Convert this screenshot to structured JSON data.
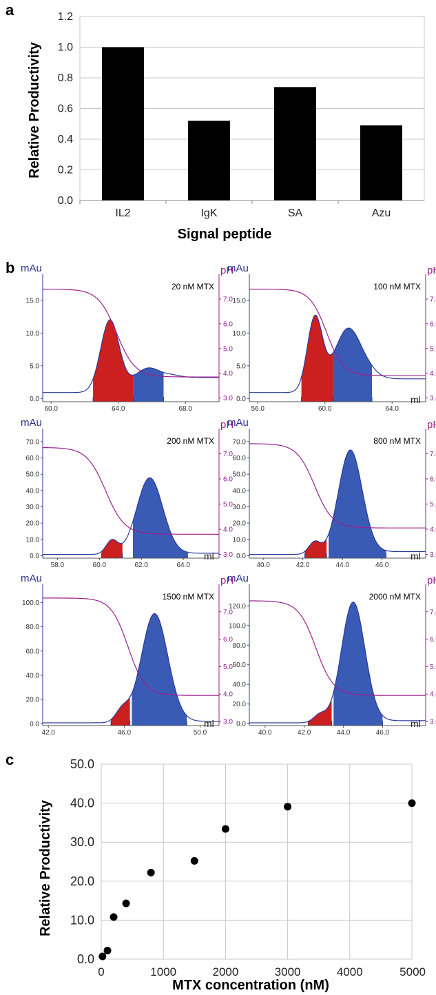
{
  "panels": {
    "a": "a",
    "b": "b",
    "c": "c"
  },
  "chart_data": [
    {
      "type": "bar",
      "panel": "a",
      "categories": [
        "IL2",
        "IgK",
        "SA",
        "Azu"
      ],
      "values": [
        1.0,
        0.52,
        0.74,
        0.49
      ],
      "ylabel": "Relative Productivity",
      "xlabel": "Signal peptide",
      "ylim": [
        0,
        1.2
      ],
      "yticks": [
        "0.0",
        "0.2",
        "0.4",
        "0.6",
        "0.8",
        "1.0",
        "1.2"
      ],
      "grid": "horizontal",
      "bar_color": "#000000"
    },
    {
      "type": "line",
      "panel": "b",
      "left_axis_label": "mAu",
      "right_axis_label": "pH",
      "x_unit": "ml",
      "colors": {
        "uv": "#2b3a9a",
        "ph": "#9a1f8e",
        "fraction1": "#cc1f1f",
        "fraction2": "#3a5bb5"
      },
      "subplots": [
        {
          "condition": "20 nM MTX",
          "xlim": [
            59.5,
            70.0
          ],
          "ylim": [
            -0.5,
            19.0
          ],
          "xticks": [
            "60.0",
            "64.0",
            "68.0"
          ],
          "xtick_values": [
            60,
            64,
            68
          ],
          "yticks": [
            "0.0",
            "5.0",
            "10.0",
            "15.0"
          ],
          "ytick_values": [
            0,
            5,
            10,
            15
          ],
          "show_ml": false,
          "baseline": 0.9,
          "tail": 3.2,
          "peaks": [
            [
              63.5,
              11.0,
              0.55
            ],
            [
              65.8,
              3.7,
              0.9
            ]
          ],
          "ph_high": 7.4,
          "ph_low": 3.85,
          "ph_mid": 63.9,
          "ph_width": 0.55,
          "fraction1": [
            62.5,
            64.9
          ],
          "fraction2": [
            64.9,
            66.7
          ]
        },
        {
          "condition": "100 nM MTX",
          "xlim": [
            55.5,
            66.0
          ],
          "ylim": [
            -0.5,
            19.0
          ],
          "xticks": [
            "56.0",
            "60.0",
            "64.0"
          ],
          "xtick_values": [
            56,
            60,
            64
          ],
          "yticks": [
            "0.0",
            "5.0",
            "10.0",
            "15.0"
          ],
          "ytick_values": [
            0,
            5,
            10,
            15
          ],
          "show_ml": true,
          "baseline": 0.9,
          "tail": 3.0,
          "peaks": [
            [
              59.4,
              11.2,
              0.45
            ],
            [
              61.4,
              9.8,
              0.85
            ]
          ],
          "ph_high": 7.4,
          "ph_low": 3.9,
          "ph_mid": 60.1,
          "ph_width": 0.5,
          "fraction1": [
            58.6,
            60.5
          ],
          "fraction2": [
            60.5,
            62.8
          ]
        },
        {
          "condition": "200 nM MTX",
          "xlim": [
            57.3,
            65.7
          ],
          "ylim": [
            -1.5,
            78.0
          ],
          "xticks": [
            "58.0",
            "60.0",
            "62.0",
            "64.0"
          ],
          "xtick_values": [
            58,
            60,
            62,
            64
          ],
          "yticks": [
            "0.0",
            "10.0",
            "20.0",
            "30.0",
            "40.0",
            "50.0",
            "60.0",
            "70.0"
          ],
          "ytick_values": [
            0,
            10,
            20,
            30,
            40,
            50,
            60,
            70
          ],
          "show_ml": true,
          "baseline": 0.8,
          "tail": 1.5,
          "peaks": [
            [
              60.6,
              8.5,
              0.28
            ],
            [
              62.4,
              47.0,
              0.62
            ]
          ],
          "ph_high": 7.25,
          "ph_low": 3.8,
          "ph_mid": 60.3,
          "ph_width": 0.45,
          "fraction1": [
            60.1,
            61.1
          ],
          "fraction2": [
            61.6,
            64.2
          ]
        },
        {
          "condition": "800 nM MTX",
          "xlim": [
            39.3,
            48.2
          ],
          "ylim": [
            -1.5,
            78.0
          ],
          "xticks": [
            "40.0",
            "42.0",
            "44.0",
            "46.0"
          ],
          "xtick_values": [
            40,
            42,
            44,
            46
          ],
          "yticks": [
            "0.0",
            "10.0",
            "20.0",
            "30.0",
            "40.0",
            "50.0",
            "60.0",
            "70.0"
          ],
          "ytick_values": [
            0,
            10,
            20,
            30,
            40,
            50,
            60,
            70
          ],
          "show_ml": true,
          "baseline": 0.8,
          "tail": 2.5,
          "peaks": [
            [
              42.6,
              7.5,
              0.3
            ],
            [
              44.4,
              64.0,
              0.6
            ]
          ],
          "ph_high": 7.4,
          "ph_low": 4.05,
          "ph_mid": 42.6,
          "ph_width": 0.45,
          "fraction1": [
            42.1,
            43.2
          ],
          "fraction2": [
            43.3,
            46.2
          ]
        },
        {
          "condition": "1500 nM MTX",
          "xlim": [
            41.7,
            51.0
          ],
          "ylim": [
            -1.5,
            115.0
          ],
          "xticks": [
            "42.0",
            "46.0",
            "50.0"
          ],
          "xtick_values": [
            42,
            46,
            50
          ],
          "yticks": [
            "0.0",
            "20.0",
            "40.0",
            "60.0",
            "80.0",
            "100.0"
          ],
          "ytick_values": [
            0,
            20,
            40,
            60,
            80,
            100
          ],
          "show_ml": true,
          "baseline": 0.8,
          "tail": 2.0,
          "peaks": [
            [
              45.9,
              10.0,
              0.35
            ],
            [
              47.6,
              90.0,
              0.7
            ]
          ],
          "ph_high": 7.5,
          "ph_low": 3.95,
          "ph_mid": 46.2,
          "ph_width": 0.45,
          "fraction1": [
            45.3,
            46.3
          ],
          "fraction2": [
            46.4,
            49.3
          ]
        },
        {
          "condition": "2000 nM MTX",
          "xlim": [
            39.2,
            48.2
          ],
          "ylim": [
            -2.0,
            142.0
          ],
          "xticks": [
            "40.0",
            "42.0",
            "44.0",
            "46.0"
          ],
          "xtick_values": [
            40,
            42,
            44,
            46
          ],
          "yticks": [
            "0.0",
            "20.0",
            "40.0",
            "60.0",
            "80.0",
            "100.0",
            "120.0"
          ],
          "ytick_values": [
            0,
            20,
            40,
            60,
            80,
            100,
            120
          ],
          "show_ml": true,
          "baseline": 0.8,
          "tail": 3.0,
          "peaks": [
            [
              42.8,
              8.0,
              0.32
            ],
            [
              44.5,
              123.0,
              0.6
            ]
          ],
          "ph_high": 7.4,
          "ph_low": 3.95,
          "ph_mid": 42.6,
          "ph_width": 0.45,
          "fraction1": [
            42.2,
            43.4
          ],
          "fraction2": [
            43.5,
            46.0
          ]
        }
      ]
    },
    {
      "type": "scatter",
      "panel": "c",
      "x": [
        20,
        100,
        200,
        400,
        800,
        1500,
        2000,
        3000,
        5000
      ],
      "y": [
        0.7,
        2.2,
        10.8,
        14.3,
        22.2,
        25.2,
        33.4,
        39.1,
        40.0
      ],
      "xlabel": "MTX concentration (nM)",
      "ylabel": "Relative Productivity",
      "xlim": [
        0,
        5000
      ],
      "ylim": [
        0,
        50
      ],
      "xticks": [
        "0",
        "1000",
        "2000",
        "3000",
        "4000",
        "5000"
      ],
      "yticks": [
        "0.0",
        "10.0",
        "20.0",
        "30.0",
        "40.0",
        "50.0"
      ],
      "grid": "both"
    }
  ]
}
